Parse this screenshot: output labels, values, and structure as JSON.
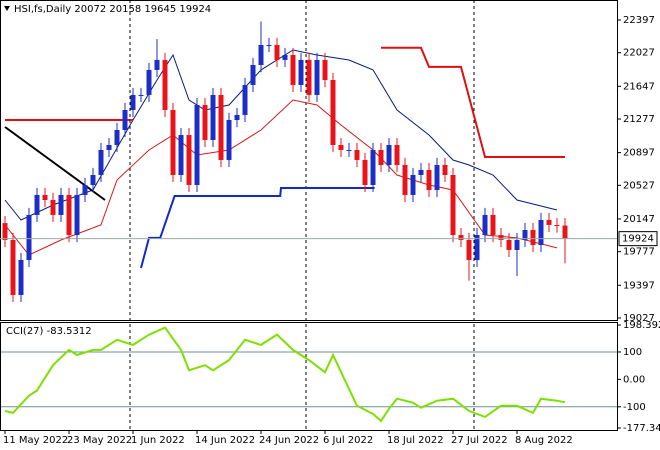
{
  "chart_data": [
    {
      "type": "candlestick",
      "title": "HSI,fs,Daily  20072 20158 19645 19924",
      "categories": [
        "11 May 2022",
        null,
        null,
        null,
        null,
        null,
        null,
        null,
        "23 May 2022",
        null,
        null,
        null,
        null,
        null,
        null,
        null,
        "1 Jun 2022",
        null,
        null,
        null,
        null,
        null,
        null,
        null,
        "14 Jun 2022",
        null,
        null,
        null,
        null,
        null,
        null,
        null,
        "24 Jun 2022",
        null,
        null,
        null,
        null,
        null,
        null,
        null,
        "6 Jul 2022",
        null,
        null,
        null,
        null,
        null,
        null,
        null,
        "18 Jul 2022",
        null,
        null,
        null,
        null,
        null,
        null,
        null,
        "27 Jul 2022",
        null,
        null,
        null,
        null,
        null,
        null,
        null,
        "8 Aug 2022",
        null,
        null,
        null,
        null,
        null,
        null
      ],
      "open": [
        20100,
        19909,
        19287,
        19683,
        20192,
        20418,
        20361,
        20192,
        20418,
        19965,
        20418,
        20531,
        20644,
        20927,
        20983,
        21153,
        21379,
        21549,
        21549,
        21832,
        21945,
        21379,
        20644,
        21096,
        20531,
        21436,
        21040,
        21549,
        20814,
        21266,
        21323,
        21662,
        21888,
        22114,
        22114,
        21945,
        22001,
        21662,
        21945,
        21549,
        21945,
        21718,
        20983,
        20927,
        20927,
        20814,
        20531,
        20927,
        20757,
        20983,
        20757,
        20418,
        20644,
        20701,
        20474,
        20757,
        20644,
        19965,
        19909,
        19683,
        19965,
        20192,
        19965,
        19909,
        19796,
        19909,
        20022,
        19852,
        20135,
        20079,
        20072
      ],
      "high": [
        20180,
        19989,
        19763,
        20272,
        20498,
        20498,
        20441,
        20498,
        20498,
        20498,
        20611,
        20724,
        21007,
        21063,
        21233,
        21459,
        21629,
        21629,
        21912,
        22180,
        22025,
        21459,
        21176,
        21176,
        21516,
        21516,
        21629,
        21629,
        21346,
        21403,
        21742,
        21968,
        22380,
        22194,
        22194,
        22081,
        22081,
        22025,
        22025,
        22025,
        22025,
        21798,
        21063,
        21007,
        21007,
        20894,
        21007,
        21007,
        21063,
        21063,
        20837,
        20724,
        20781,
        20781,
        20837,
        20837,
        20724,
        20045,
        19989,
        20045,
        20272,
        20272,
        20045,
        19989,
        19989,
        20102,
        20102,
        20215,
        20215,
        20159,
        20158
      ],
      "low": [
        19829,
        19207,
        19207,
        19603,
        20112,
        20281,
        20112,
        20112,
        19885,
        19885,
        20338,
        20451,
        20564,
        20847,
        20903,
        21073,
        21299,
        21469,
        21469,
        21752,
        21299,
        20564,
        20564,
        20451,
        20451,
        20960,
        20960,
        20734,
        20734,
        21186,
        21243,
        21582,
        21808,
        22034,
        21865,
        21865,
        21582,
        21582,
        21469,
        21469,
        21638,
        20903,
        20847,
        20847,
        20734,
        20451,
        20451,
        20677,
        20677,
        20677,
        20338,
        20338,
        20564,
        20394,
        20394,
        20564,
        19885,
        19829,
        19450,
        19603,
        19885,
        19885,
        19829,
        19716,
        19500,
        19829,
        19772,
        19772,
        19999,
        19992,
        19645
      ],
      "close": [
        19909,
        19287,
        19683,
        20192,
        20418,
        20361,
        20192,
        20418,
        19965,
        20418,
        20531,
        20644,
        20927,
        20983,
        21153,
        21379,
        21549,
        21549,
        21832,
        21945,
        21379,
        20644,
        21096,
        20531,
        21436,
        21040,
        21549,
        20814,
        21266,
        21323,
        21662,
        21888,
        22114,
        22114,
        21945,
        22001,
        21662,
        21945,
        21549,
        21945,
        21718,
        20983,
        20927,
        20927,
        20814,
        20531,
        20927,
        20757,
        20983,
        20757,
        20418,
        20644,
        20701,
        20474,
        20757,
        20644,
        19965,
        19909,
        19683,
        19965,
        20192,
        19965,
        19909,
        19796,
        19909,
        20022,
        19852,
        20135,
        20079,
        20072,
        19924
      ],
      "up_color": "#1c2fc4",
      "down_color": "#e8141c",
      "ylim": [
        19004,
        22623
      ],
      "yticks": [
        22397,
        22027,
        21647,
        21277,
        20897,
        20527,
        20147,
        19777,
        19397,
        19027
      ],
      "series": [
        {
          "color": "#0a1a80",
          "x": [
            0,
            2,
            6,
            11,
            16,
            19,
            21,
            23,
            25,
            28,
            32,
            36,
            39,
            43,
            46,
            49,
            53,
            56,
            58,
            61,
            64,
            69
          ],
          "values": [
            20361,
            20135,
            20305,
            20474,
            21266,
            21718,
            22001,
            21492,
            21379,
            21436,
            21832,
            22058,
            22001,
            21945,
            21832,
            21379,
            21096,
            20814,
            20757,
            20644,
            20361,
            20248
          ]
        },
        {
          "color": "#d81818",
          "x": [
            0,
            3,
            7,
            12,
            14,
            18,
            21,
            24,
            28,
            32,
            36,
            39,
            42,
            46,
            49,
            53,
            56,
            60,
            64,
            69
          ],
          "values": [
            20079,
            19739,
            19909,
            20079,
            20587,
            20927,
            21096,
            20870,
            20927,
            21153,
            21492,
            21436,
            21209,
            20927,
            20644,
            20531,
            20474,
            19965,
            19932,
            19819
          ]
        },
        {
          "color": "#e01010",
          "x": [
            0,
            16,
            17,
            47,
            52,
            53,
            57,
            60,
            70
          ],
          "values": [
            21266,
            21266,
            null,
            22082,
            22082,
            21866,
            21866,
            20847,
            20847
          ]
        },
        {
          "color": "#1428c8",
          "x": [
            17,
            18,
            19.4,
            21.2,
            34.4,
            34.5,
            46.2
          ],
          "values": [
            19592,
            19932,
            19932,
            20406,
            20406,
            20497,
            20497
          ]
        },
        {
          "color": "#000000",
          "x": [
            0,
            12.5
          ],
          "values": [
            21187,
            20361
          ]
        }
      ]
    },
    {
      "type": "line",
      "title": "CCI(27) -83.5312",
      "color": "#7ee000",
      "x": [
        0,
        1,
        3,
        4,
        6,
        8,
        9,
        11,
        12,
        14,
        16,
        18,
        20,
        22,
        23,
        25,
        26,
        28,
        30,
        32,
        34,
        36,
        38,
        40,
        41,
        44,
        46,
        47,
        48,
        49,
        51,
        52,
        54,
        56,
        58,
        60,
        62,
        64,
        66,
        67,
        69,
        70
      ],
      "values": [
        -114.8,
        -122.2,
        -59.3,
        -40.7,
        51.9,
        107.4,
        88.9,
        107.4,
        107.4,
        144.4,
        125.9,
        163,
        188.9,
        107.4,
        33.3,
        51.9,
        33.3,
        70.4,
        144.4,
        125.9,
        163,
        107.4,
        70.4,
        25.9,
        88.9,
        -96.3,
        -125.9,
        -151.9,
        -107.4,
        -70.4,
        -85.2,
        -103.7,
        -77.8,
        -70.4,
        -114.8,
        -137,
        -96.3,
        -96.3,
        -122.2,
        -70.4,
        -77.8,
        -83.5312
      ],
      "ylim": [
        -177.341,
        198.3924
      ],
      "yticks": [
        198.3924,
        100,
        {
          "value": 0,
          "label": "0.00"
        },
        -100,
        -177.341
      ],
      "levels": [
        100,
        -100
      ]
    }
  ]
}
